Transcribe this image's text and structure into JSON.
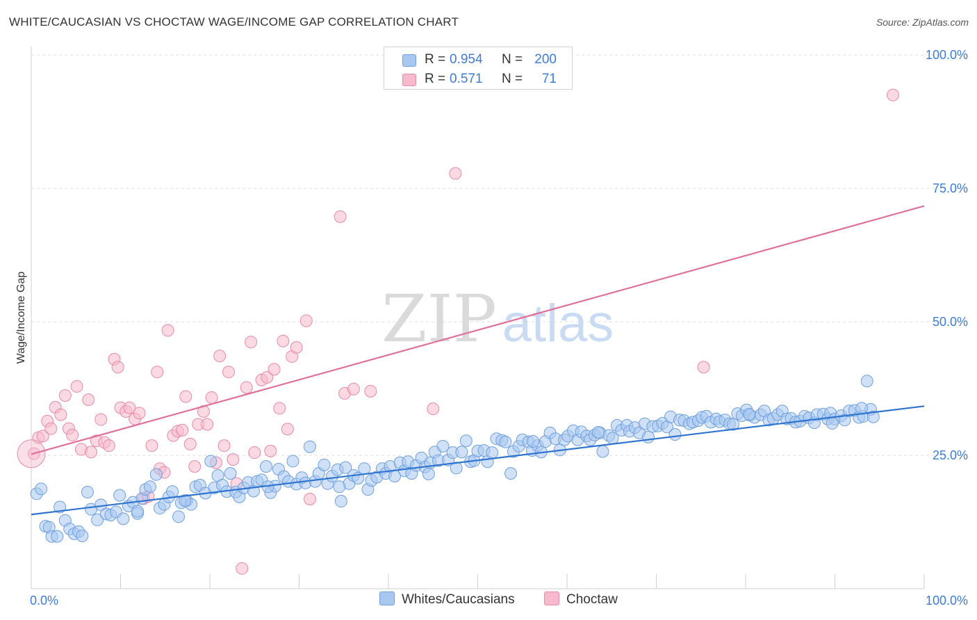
{
  "title": "WHITE/CAUCASIAN VS CHOCTAW WAGE/INCOME GAP CORRELATION CHART",
  "source": "Source: ZipAtlas.com",
  "watermark": {
    "zip": "ZIP",
    "atlas": "atlas"
  },
  "colors": {
    "blue_fill": "#a9c8f0",
    "blue_stroke": "#6d9fdf",
    "blue_line": "#2f74cf",
    "pink_fill": "#f7b9cc",
    "pink_stroke": "#e889a8",
    "pink_line": "#e0709a",
    "tick_label": "#3d7bd6"
  },
  "legend": {
    "rows": [
      {
        "r_label": "R =",
        "r_value": "0.954",
        "n_label": "N =",
        "n_value": "200",
        "color": "#a9c8f0",
        "border": "#6d9fdf"
      },
      {
        "r_label": "R =",
        "r_value": "0.571",
        "n_label": "N =",
        "n_value": "71",
        "color": "#f7b9cc",
        "border": "#e889a8"
      }
    ]
  },
  "bottom_legend": [
    {
      "label": "Whites/Caucasians",
      "color": "#a9c8f0",
      "border": "#6d9fdf"
    },
    {
      "label": "Choctaw",
      "color": "#f7b9cc",
      "border": "#e889a8"
    }
  ],
  "chart_data": {
    "type": "scatter",
    "title": "WHITE/CAUCASIAN VS CHOCTAW WAGE/INCOME GAP CORRELATION CHART",
    "xlabel": "",
    "ylabel": "Wage/Income Gap",
    "xlim": [
      0,
      100
    ],
    "ylim": [
      0,
      100
    ],
    "x_tick_labels": [
      {
        "value": 0,
        "label": "0.0%"
      },
      {
        "value": 100,
        "label": "100.0%"
      }
    ],
    "y_tick_labels": [
      {
        "value": 25,
        "label": "25.0%"
      },
      {
        "value": 50,
        "label": "50.0%"
      },
      {
        "value": 75,
        "label": "75.0%"
      },
      {
        "value": 100,
        "label": "100.0%"
      }
    ],
    "grid": "horizontal dashed",
    "legend_position": "top-center",
    "series": [
      {
        "name": "Whites/Caucasians",
        "r": 0.954,
        "n": 200,
        "trendline": {
          "x": [
            0,
            100
          ],
          "y": [
            13.9,
            34.2
          ]
        },
        "points": [
          [
            0.6,
            17.8
          ],
          [
            1.1,
            18.7
          ],
          [
            1.6,
            11.7
          ],
          [
            2.0,
            11.5
          ],
          [
            2.3,
            9.8
          ],
          [
            2.9,
            9.8
          ],
          [
            3.2,
            15.3
          ],
          [
            3.8,
            12.8
          ],
          [
            4.3,
            11.2
          ],
          [
            4.8,
            10.3
          ],
          [
            5.3,
            10.7
          ],
          [
            5.7,
            9.9
          ],
          [
            6.3,
            18.1
          ],
          [
            6.7,
            14.9
          ],
          [
            7.4,
            12.9
          ],
          [
            7.8,
            15.7
          ],
          [
            8.4,
            14.0
          ],
          [
            8.9,
            13.8
          ],
          [
            9.5,
            14.4
          ],
          [
            9.9,
            17.5
          ],
          [
            10.3,
            13.1
          ],
          [
            10.9,
            15.5
          ],
          [
            11.4,
            16.2
          ],
          [
            11.9,
            14.1
          ],
          [
            12.4,
            16.9
          ],
          [
            12.8,
            18.6
          ],
          [
            13.3,
            19.1
          ],
          [
            14.0,
            21.4
          ],
          [
            14.4,
            15.1
          ],
          [
            14.9,
            15.8
          ],
          [
            15.4,
            17.2
          ],
          [
            15.8,
            18.2
          ],
          [
            16.5,
            13.5
          ],
          [
            16.8,
            16.1
          ],
          [
            17.4,
            16.5
          ],
          [
            17.9,
            15.8
          ],
          [
            18.4,
            19.1
          ],
          [
            18.9,
            19.4
          ],
          [
            19.5,
            17.9
          ],
          [
            20.1,
            23.9
          ],
          [
            20.5,
            18.9
          ],
          [
            20.9,
            21.2
          ],
          [
            21.4,
            19.4
          ],
          [
            21.9,
            18.2
          ],
          [
            22.3,
            21.6
          ],
          [
            22.9,
            18.1
          ],
          [
            23.3,
            17.2
          ],
          [
            23.8,
            18.9
          ],
          [
            24.3,
            19.9
          ],
          [
            24.9,
            18.3
          ],
          [
            25.3,
            20.1
          ],
          [
            25.8,
            20.4
          ],
          [
            26.3,
            22.9
          ],
          [
            26.8,
            18.0
          ],
          [
            27.3,
            19.2
          ],
          [
            27.7,
            22.4
          ],
          [
            28.3,
            21.0
          ],
          [
            28.8,
            20.1
          ],
          [
            29.3,
            23.9
          ],
          [
            29.7,
            19.6
          ],
          [
            30.3,
            20.8
          ],
          [
            30.7,
            19.8
          ],
          [
            31.2,
            26.6
          ],
          [
            31.8,
            20.1
          ],
          [
            32.2,
            21.6
          ],
          [
            32.8,
            23.2
          ],
          [
            33.2,
            19.7
          ],
          [
            33.7,
            21.1
          ],
          [
            34.3,
            22.3
          ],
          [
            34.7,
            16.4
          ],
          [
            35.2,
            22.7
          ],
          [
            35.6,
            19.7
          ],
          [
            36.1,
            21.2
          ],
          [
            36.6,
            20.7
          ],
          [
            37.3,
            22.5
          ],
          [
            37.7,
            18.6
          ],
          [
            38.1,
            20.3
          ],
          [
            38.7,
            20.9
          ],
          [
            39.3,
            22.5
          ],
          [
            39.7,
            21.6
          ],
          [
            40.2,
            22.9
          ],
          [
            40.7,
            21.1
          ],
          [
            41.3,
            23.6
          ],
          [
            41.8,
            22.1
          ],
          [
            42.2,
            23.8
          ],
          [
            42.6,
            21.6
          ],
          [
            43.1,
            23.1
          ],
          [
            43.7,
            24.5
          ],
          [
            44.1,
            22.8
          ],
          [
            44.7,
            23.6
          ],
          [
            45.2,
            25.6
          ],
          [
            45.6,
            24.0
          ],
          [
            46.1,
            26.7
          ],
          [
            46.7,
            24.1
          ],
          [
            47.2,
            25.5
          ],
          [
            47.6,
            22.6
          ],
          [
            48.2,
            25.6
          ],
          [
            48.7,
            27.7
          ],
          [
            49.2,
            23.8
          ],
          [
            49.6,
            24.0
          ],
          [
            50.0,
            25.8
          ],
          [
            50.7,
            25.9
          ],
          [
            51.1,
            23.8
          ],
          [
            51.6,
            25.5
          ],
          [
            52.1,
            28.1
          ],
          [
            52.7,
            27.8
          ],
          [
            53.1,
            27.5
          ],
          [
            53.7,
            21.6
          ],
          [
            54.0,
            25.7
          ],
          [
            54.6,
            26.7
          ],
          [
            55.0,
            27.9
          ],
          [
            55.7,
            27.5
          ],
          [
            56.1,
            25.9
          ],
          [
            56.7,
            26.8
          ],
          [
            57.1,
            25.6
          ],
          [
            57.6,
            27.6
          ],
          [
            58.1,
            29.2
          ],
          [
            58.7,
            28.1
          ],
          [
            59.2,
            26.0
          ],
          [
            59.7,
            27.9
          ],
          [
            60.1,
            28.6
          ],
          [
            60.7,
            29.6
          ],
          [
            61.2,
            27.9
          ],
          [
            61.6,
            29.4
          ],
          [
            62.2,
            28.6
          ],
          [
            62.6,
            27.9
          ],
          [
            63.1,
            28.8
          ],
          [
            63.7,
            29.2
          ],
          [
            64.0,
            25.7
          ],
          [
            64.7,
            28.7
          ],
          [
            65.1,
            28.2
          ],
          [
            65.6,
            30.6
          ],
          [
            66.1,
            29.7
          ],
          [
            66.7,
            30.6
          ],
          [
            67.0,
            29.5
          ],
          [
            67.6,
            30.2
          ],
          [
            68.1,
            29.2
          ],
          [
            68.7,
            30.9
          ],
          [
            69.1,
            28.4
          ],
          [
            69.6,
            30.4
          ],
          [
            70.2,
            30.5
          ],
          [
            70.7,
            31.0
          ],
          [
            71.2,
            30.3
          ],
          [
            71.6,
            32.2
          ],
          [
            72.1,
            28.9
          ],
          [
            72.6,
            31.6
          ],
          [
            73.1,
            31.5
          ],
          [
            73.7,
            30.9
          ],
          [
            74.1,
            31.2
          ],
          [
            74.7,
            31.5
          ],
          [
            75.1,
            32.1
          ],
          [
            75.6,
            32.3
          ],
          [
            76.1,
            31.2
          ],
          [
            76.7,
            31.8
          ],
          [
            77.1,
            31.3
          ],
          [
            77.7,
            31.6
          ],
          [
            78.2,
            30.9
          ],
          [
            78.6,
            30.8
          ],
          [
            79.1,
            32.8
          ],
          [
            79.6,
            32.4
          ],
          [
            80.1,
            33.5
          ],
          [
            80.5,
            32.5
          ],
          [
            81.0,
            32.1
          ],
          [
            81.7,
            32.6
          ],
          [
            82.1,
            33.3
          ],
          [
            82.6,
            31.6
          ],
          [
            83.1,
            31.9
          ],
          [
            83.6,
            32.6
          ],
          [
            84.1,
            33.3
          ],
          [
            84.6,
            31.8
          ],
          [
            85.1,
            31.9
          ],
          [
            85.6,
            31.2
          ],
          [
            86.1,
            31.4
          ],
          [
            86.6,
            32.3
          ],
          [
            87.1,
            32.0
          ],
          [
            87.7,
            31.1
          ],
          [
            88.0,
            32.6
          ],
          [
            88.7,
            32.7
          ],
          [
            89.2,
            31.8
          ],
          [
            89.5,
            32.9
          ],
          [
            90.0,
            31.8
          ],
          [
            90.7,
            32.4
          ],
          [
            91.1,
            31.6
          ],
          [
            91.6,
            33.3
          ],
          [
            92.2,
            33.4
          ],
          [
            92.7,
            32.1
          ],
          [
            93.2,
            32.3
          ],
          [
            93.6,
            38.9
          ],
          [
            94.0,
            33.6
          ],
          [
            94.3,
            32.2
          ],
          [
            11.9,
            14.5
          ],
          [
            17.2,
            16.5
          ],
          [
            26.5,
            19.1
          ],
          [
            34.5,
            19.1
          ],
          [
            44.5,
            21.5
          ],
          [
            56.2,
            27.6
          ],
          [
            63.5,
            29.3
          ],
          [
            80.4,
            32.7
          ],
          [
            89.7,
            31.0
          ],
          [
            93.0,
            33.8
          ]
        ]
      },
      {
        "name": "Choctaw",
        "r": 0.571,
        "n": 71,
        "trendline": {
          "x": [
            0,
            100
          ],
          "y": [
            25.2,
            71.7
          ]
        },
        "points": [
          [
            0.3,
            25.3
          ],
          [
            0.8,
            28.3
          ],
          [
            1.3,
            28.6
          ],
          [
            1.8,
            31.4
          ],
          [
            2.2,
            30.0
          ],
          [
            2.7,
            34.0
          ],
          [
            3.3,
            32.6
          ],
          [
            3.8,
            36.2
          ],
          [
            4.2,
            30.0
          ],
          [
            4.6,
            28.8
          ],
          [
            5.1,
            37.9
          ],
          [
            5.6,
            26.1
          ],
          [
            6.4,
            35.4
          ],
          [
            6.7,
            25.6
          ],
          [
            7.3,
            27.7
          ],
          [
            7.8,
            31.7
          ],
          [
            8.2,
            27.4
          ],
          [
            8.7,
            26.8
          ],
          [
            9.3,
            43.0
          ],
          [
            9.7,
            41.5
          ],
          [
            10.0,
            33.9
          ],
          [
            10.6,
            33.2
          ],
          [
            11.0,
            33.9
          ],
          [
            11.6,
            31.8
          ],
          [
            12.1,
            32.9
          ],
          [
            12.6,
            16.9
          ],
          [
            13.1,
            17.3
          ],
          [
            13.5,
            26.8
          ],
          [
            14.1,
            40.6
          ],
          [
            14.4,
            22.5
          ],
          [
            14.9,
            21.8
          ],
          [
            15.3,
            48.4
          ],
          [
            15.9,
            28.7
          ],
          [
            16.4,
            29.5
          ],
          [
            16.9,
            29.7
          ],
          [
            17.3,
            36.0
          ],
          [
            17.8,
            27.1
          ],
          [
            18.3,
            22.9
          ],
          [
            18.7,
            30.8
          ],
          [
            19.3,
            33.2
          ],
          [
            19.7,
            30.8
          ],
          [
            20.2,
            35.8
          ],
          [
            20.7,
            23.6
          ],
          [
            21.1,
            43.6
          ],
          [
            21.6,
            26.8
          ],
          [
            22.1,
            40.6
          ],
          [
            22.6,
            24.2
          ],
          [
            23.0,
            19.7
          ],
          [
            23.6,
            3.8
          ],
          [
            24.1,
            37.7
          ],
          [
            24.6,
            46.2
          ],
          [
            25.0,
            25.5
          ],
          [
            25.8,
            39.1
          ],
          [
            26.4,
            39.6
          ],
          [
            26.8,
            25.8
          ],
          [
            27.2,
            41.1
          ],
          [
            27.8,
            33.8
          ],
          [
            28.2,
            46.4
          ],
          [
            28.7,
            29.9
          ],
          [
            29.2,
            43.5
          ],
          [
            29.7,
            45.2
          ],
          [
            30.8,
            50.2
          ],
          [
            31.2,
            16.8
          ],
          [
            34.6,
            69.7
          ],
          [
            35.1,
            36.6
          ],
          [
            36.1,
            37.4
          ],
          [
            38.0,
            37.0
          ],
          [
            47.5,
            77.8
          ],
          [
            45.0,
            33.7
          ],
          [
            75.3,
            41.5
          ],
          [
            96.5,
            92.5
          ]
        ]
      }
    ]
  }
}
